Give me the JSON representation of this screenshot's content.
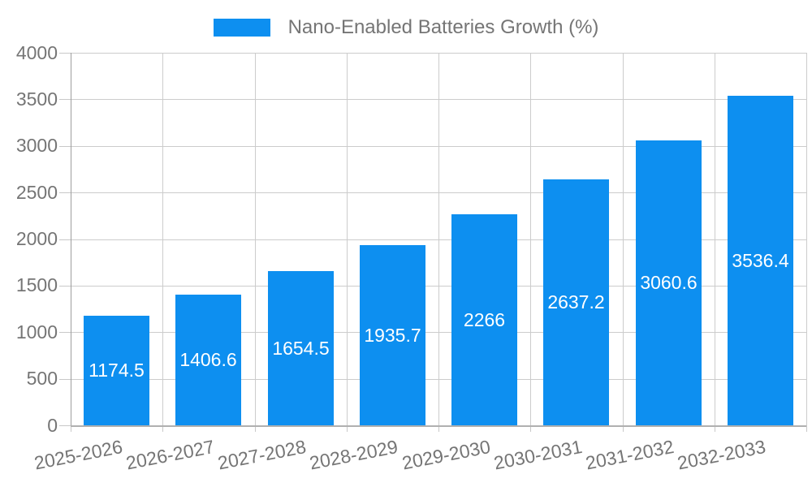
{
  "chart_data": {
    "type": "bar",
    "title": "",
    "legend": {
      "position": "top",
      "label": "Nano-Enabled Batteries Growth (%)"
    },
    "categories": [
      "2025-2026",
      "2026-2027",
      "2027-2028",
      "2028-2029",
      "2029-2030",
      "2030-2031",
      "2031-2032",
      "2032-2033"
    ],
    "series": [
      {
        "name": "Nano-Enabled Batteries Growth (%)",
        "values": [
          1174.5,
          1406.6,
          1654.5,
          1935.7,
          2266,
          2637.2,
          3060.6,
          3536.4
        ],
        "value_labels": [
          "1174.5",
          "1406.6",
          "1654.5",
          "1935.7",
          "2266",
          "2637.2",
          "3060.6",
          "3536.4"
        ]
      }
    ],
    "ylim": [
      0,
      4000
    ],
    "yticks": [
      0,
      500,
      1000,
      1500,
      2000,
      2500,
      3000,
      3500,
      4000
    ],
    "grid": true,
    "value_label_position": "inside-center",
    "colors": {
      "bar": "#0d8ff0",
      "grid": "#cccccc",
      "y_axis_line": "#9e9e9e",
      "x_axis_line": "#b0b0b0",
      "tick_text": "#757575",
      "value_text": "#ffffff",
      "background": "#ffffff"
    }
  }
}
